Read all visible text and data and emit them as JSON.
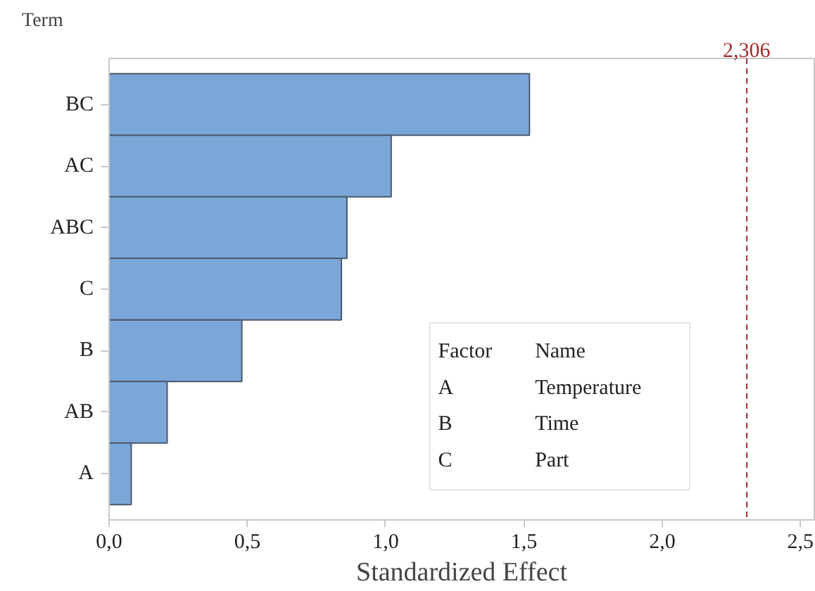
{
  "chart_data": {
    "type": "bar",
    "orientation": "horizontal",
    "ylabel": "Term",
    "xlabel": "Standardized Effect",
    "categories": [
      "BC",
      "AC",
      "ABC",
      "C",
      "B",
      "AB",
      "A"
    ],
    "values": [
      1.52,
      1.02,
      0.86,
      0.84,
      0.48,
      0.21,
      0.08
    ],
    "color": "#7ba7d8",
    "xlim": [
      0,
      2.55
    ],
    "xticks": [
      {
        "value": 0,
        "label": "0,0"
      },
      {
        "value": 0.5,
        "label": "0,5"
      },
      {
        "value": 1,
        "label": "1,0"
      },
      {
        "value": 1.5,
        "label": "1,5"
      },
      {
        "value": 2,
        "label": "2,0"
      },
      {
        "value": 2.5,
        "label": "2,5"
      }
    ],
    "ref_lines": [
      {
        "axis": "x",
        "value": 2.306,
        "label": "2,306",
        "color": "#a52a2a",
        "line_style": "dashed"
      }
    ],
    "annotations": [
      "Factor",
      "Name",
      "A",
      "Temperature",
      "B",
      "Time",
      "C",
      "Part"
    ],
    "grid": false
  }
}
